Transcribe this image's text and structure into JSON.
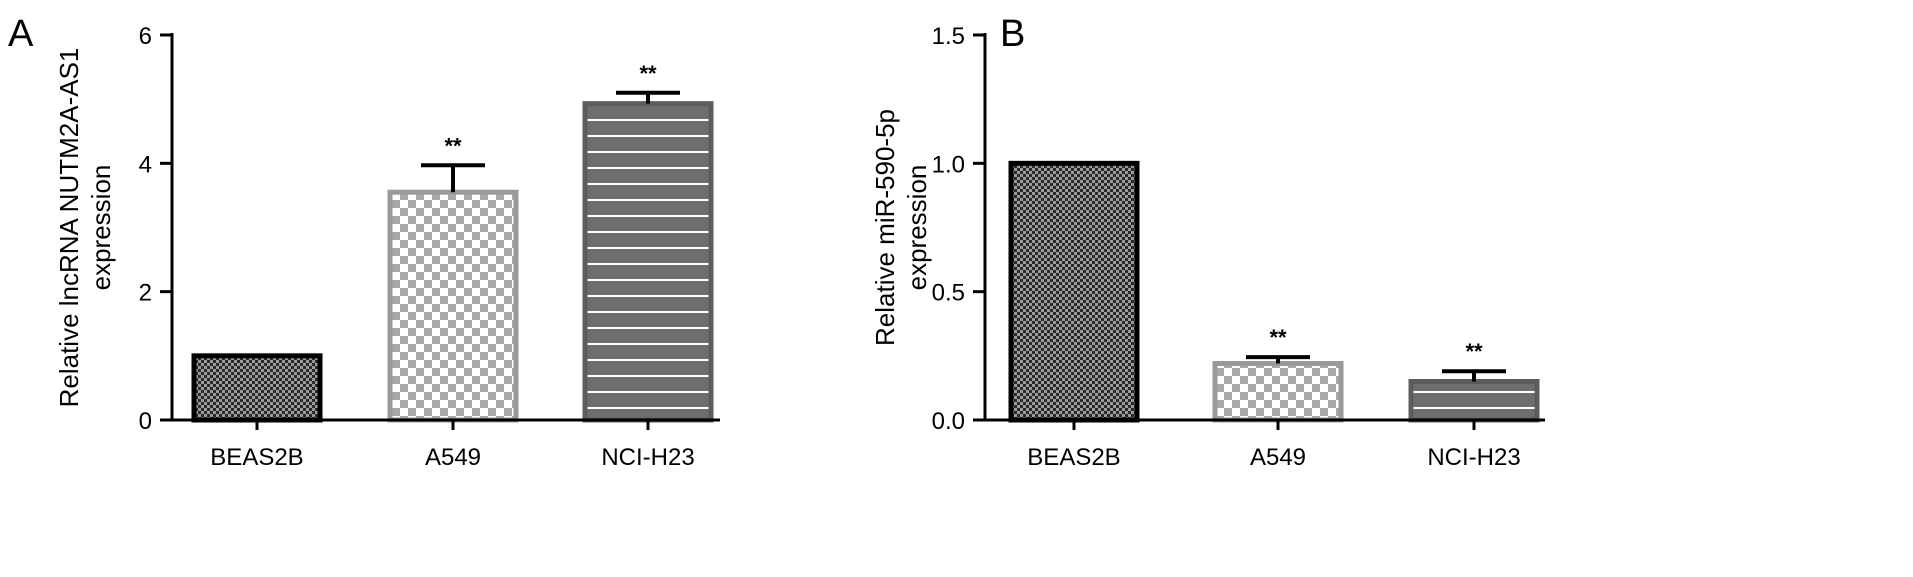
{
  "chart_data": [
    {
      "panel": "A",
      "type": "bar",
      "categories": [
        "BEAS2B",
        "A549",
        "NCI-H23"
      ],
      "values": [
        1.0,
        3.55,
        4.93
      ],
      "errors": [
        0.0,
        0.42,
        0.17
      ],
      "significance": [
        "",
        "**",
        "**"
      ],
      "ylabel_lines": [
        "Relative lncRNA NUTM2A-AS1",
        "expression"
      ],
      "ylim": [
        0,
        6
      ],
      "yticks": [
        0,
        2,
        4,
        6
      ],
      "ytick_labels": [
        "0",
        "2",
        "4",
        "6"
      ],
      "bar_styles": [
        "crosshatch-dark",
        "checker-light",
        "stripes-gray"
      ],
      "bar_outline_colors": [
        "#000000",
        "#9a9a9a",
        "#5c5c5c"
      ],
      "grid": false,
      "legend": "none"
    },
    {
      "panel": "B",
      "type": "bar",
      "categories": [
        "BEAS2B",
        "A549",
        "NCI-H23"
      ],
      "values": [
        1.0,
        0.22,
        0.15
      ],
      "errors": [
        0.0,
        0.025,
        0.04
      ],
      "significance": [
        "",
        "**",
        "**"
      ],
      "ylabel_lines": [
        "Relative miR-590-5p",
        "expression"
      ],
      "ylim": [
        0,
        1.5
      ],
      "yticks": [
        0,
        0.5,
        1.0,
        1.5
      ],
      "ytick_labels": [
        "0.0",
        "0.5",
        "1.0",
        "1.5"
      ],
      "bar_styles": [
        "crosshatch-dark",
        "checker-light",
        "stripes-gray"
      ],
      "bar_outline_colors": [
        "#000000",
        "#9a9a9a",
        "#5c5c5c"
      ],
      "grid": false,
      "legend": "none"
    }
  ]
}
